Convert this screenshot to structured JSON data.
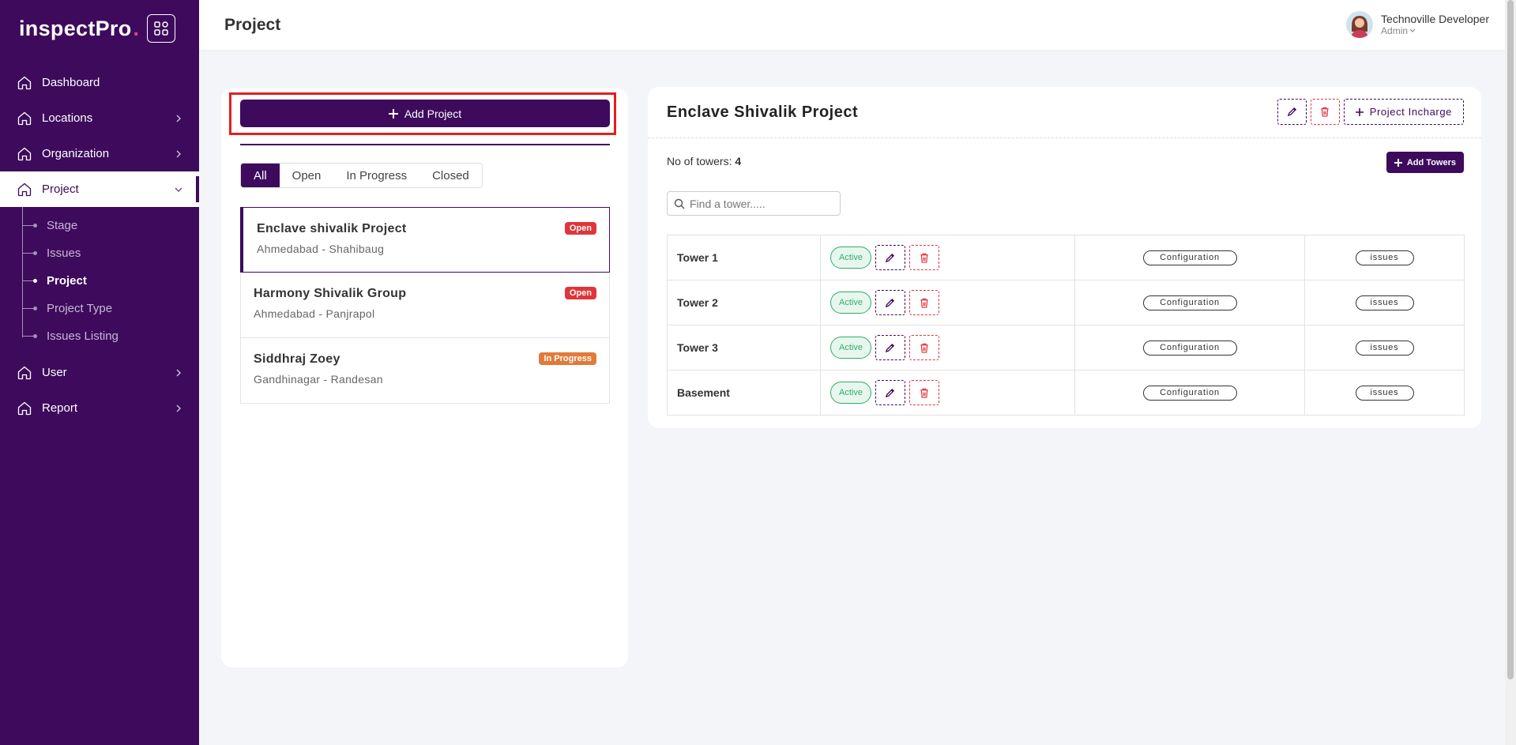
{
  "brand": {
    "name": "inspectPro"
  },
  "sidebar": {
    "items": [
      {
        "label": "Dashboard",
        "icon": "home-icon"
      },
      {
        "label": "Locations",
        "icon": "home-icon",
        "has_children": true
      },
      {
        "label": "Organization",
        "icon": "home-icon",
        "has_children": true
      },
      {
        "label": "Project",
        "icon": "home-icon",
        "has_children": true,
        "expanded": true
      },
      {
        "label": "User",
        "icon": "home-icon",
        "has_children": true
      },
      {
        "label": "Report",
        "icon": "home-icon",
        "has_children": true
      }
    ],
    "subitems": [
      {
        "label": "Stage"
      },
      {
        "label": "Issues"
      },
      {
        "label": "Project",
        "active": true
      },
      {
        "label": "Project Type"
      },
      {
        "label": "Issues Listing"
      }
    ]
  },
  "header": {
    "title": "Project",
    "user_name": "Technoville Developer",
    "user_role": "Admin"
  },
  "left": {
    "add_project_label": "Add Project",
    "filters": [
      "All",
      "Open",
      "In Progress",
      "Closed"
    ],
    "active_filter": "All",
    "projects": [
      {
        "name": "Enclave shivalik Project",
        "location": "Ahmedabad - Shahibaug",
        "status": "Open"
      },
      {
        "name": "Harmony Shivalik Group",
        "location": "Ahmedabad - Panjrapol",
        "status": "Open"
      },
      {
        "name": "Siddhraj Zoey",
        "location": "Gandhinagar - Randesan",
        "status": "In Progress"
      }
    ]
  },
  "right": {
    "title": "Enclave Shivalik Project",
    "incharge_label": "Project Incharge",
    "towers_label": "No of towers:",
    "towers_count": "4",
    "add_towers_label": "Add Towers",
    "search_placeholder": "Find a tower.....",
    "towers": [
      {
        "name": "Tower 1",
        "status": "Active",
        "config_label": "Configuration",
        "issues_label": "issues"
      },
      {
        "name": "Tower 2",
        "status": "Active",
        "config_label": "Configuration",
        "issues_label": "issues"
      },
      {
        "name": "Tower 3",
        "status": "Active",
        "config_label": "Configuration",
        "issues_label": "issues"
      },
      {
        "name": "Basement",
        "status": "Active",
        "config_label": "Configuration",
        "issues_label": "issues"
      }
    ]
  },
  "colors": {
    "primary": "#3d0a5c",
    "danger": "#e0353a",
    "success": "#2fae6a",
    "warning": "#e07b3a",
    "highlight": "#e0201f"
  }
}
